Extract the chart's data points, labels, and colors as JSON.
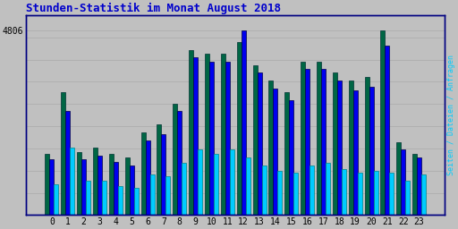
{
  "title": "Stunden-Statistik im Monat August 2018",
  "title_color": "#0000cc",
  "title_fontsize": 9,
  "ylabel_right": "Seiten / Dateien / Anfragen",
  "background_color": "#c0c0c0",
  "plot_bg_color": "#c0c0c0",
  "hours": [
    0,
    1,
    2,
    3,
    4,
    5,
    6,
    7,
    8,
    9,
    10,
    11,
    12,
    13,
    14,
    15,
    16,
    17,
    18,
    19,
    20,
    21,
    22,
    23
  ],
  "dateien": [
    1600,
    3200,
    1650,
    1750,
    1600,
    1500,
    2150,
    2350,
    2900,
    4300,
    4200,
    4200,
    4500,
    3900,
    3500,
    3200,
    4000,
    4000,
    3700,
    3500,
    3600,
    4806,
    1900,
    1600
  ],
  "seiten": [
    1450,
    2700,
    1450,
    1550,
    1380,
    1300,
    1950,
    2100,
    2700,
    4100,
    4000,
    4000,
    4806,
    3700,
    3300,
    3000,
    3800,
    3800,
    3500,
    3250,
    3350,
    4400,
    1700,
    1500
  ],
  "anfragen": [
    800,
    1750,
    900,
    900,
    750,
    700,
    1050,
    1000,
    1350,
    1700,
    1600,
    1700,
    1500,
    1300,
    1150,
    1100,
    1300,
    1350,
    1200,
    1100,
    1150,
    1100,
    900,
    1050
  ],
  "color_dateien": "#006644",
  "color_seiten": "#0000ee",
  "color_anfragen": "#00ccff",
  "bar_width": 0.28,
  "ylim": [
    0,
    5200
  ],
  "grid_color": "#aaaaaa",
  "border_color": "#000080",
  "font_family": "monospace",
  "edge_color": "#004400"
}
